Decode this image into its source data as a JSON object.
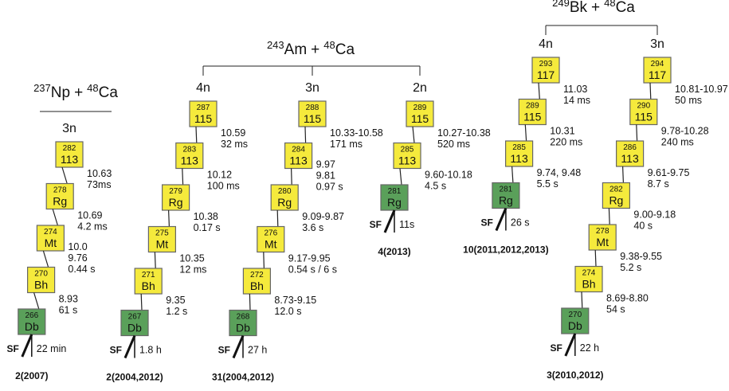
{
  "reactions": [
    {
      "target_mass": "237",
      "target": "Np",
      "joiner": "+",
      "projectile_mass": "48",
      "projectile": "Ca",
      "chains": [
        {
          "channel": "3n",
          "nodes": [
            {
              "mass": "282",
              "symbol": "113",
              "color": "#f5ea3c"
            },
            {
              "mass": "278",
              "symbol": "Rg",
              "color": "#f5ea3c"
            },
            {
              "mass": "274",
              "symbol": "Mt",
              "color": "#f5ea3c"
            },
            {
              "mass": "270",
              "symbol": "Bh",
              "color": "#f5ea3c"
            },
            {
              "mass": "266",
              "symbol": "Db",
              "color": "#5aa05a"
            }
          ],
          "decays": [
            [
              "10.63",
              "73ms"
            ],
            [
              "10.69",
              "4.2 ms"
            ],
            [
              "10.0",
              "9.76",
              "0.44 s"
            ],
            [
              "8.93",
              "61 s"
            ]
          ],
          "sf": "SF",
          "sf_time": "22 min",
          "count": "2(2007)"
        }
      ]
    },
    {
      "target_mass": "243",
      "target": "Am",
      "joiner": "+",
      "projectile_mass": "48",
      "projectile": "Ca",
      "chains": [
        {
          "channel": "4n",
          "nodes": [
            {
              "mass": "287",
              "symbol": "115",
              "color": "#f5ea3c"
            },
            {
              "mass": "283",
              "symbol": "113",
              "color": "#f5ea3c"
            },
            {
              "mass": "279",
              "symbol": "Rg",
              "color": "#f5ea3c"
            },
            {
              "mass": "275",
              "symbol": "Mt",
              "color": "#f5ea3c"
            },
            {
              "mass": "271",
              "symbol": "Bh",
              "color": "#f5ea3c"
            },
            {
              "mass": "267",
              "symbol": "Db",
              "color": "#5aa05a"
            }
          ],
          "decays": [
            [
              "10.59",
              "32 ms"
            ],
            [
              "10.12",
              "100 ms"
            ],
            [
              "10.38",
              "0.17 s"
            ],
            [
              "10.35",
              "12 ms"
            ],
            [
              "9.35",
              "1.2 s"
            ]
          ],
          "sf": "SF",
          "sf_time": "1.8 h",
          "count": "2(2004,2012)"
        },
        {
          "channel": "3n",
          "nodes": [
            {
              "mass": "288",
              "symbol": "115",
              "color": "#f5ea3c"
            },
            {
              "mass": "284",
              "symbol": "113",
              "color": "#f5ea3c"
            },
            {
              "mass": "280",
              "symbol": "Rg",
              "color": "#f5ea3c"
            },
            {
              "mass": "276",
              "symbol": "Mt",
              "color": "#f5ea3c"
            },
            {
              "mass": "272",
              "symbol": "Bh",
              "color": "#f5ea3c"
            },
            {
              "mass": "268",
              "symbol": "Db",
              "color": "#5aa05a"
            }
          ],
          "decays": [
            [
              "10.33-10.58",
              "171 ms"
            ],
            [
              "9.97",
              "9.81",
              "0.97 s"
            ],
            [
              "9.09-9.87",
              "3.6 s"
            ],
            [
              "9.17-9.95",
              "0.54 s / 6 s"
            ],
            [
              "8.73-9.15",
              "12.0 s"
            ]
          ],
          "sf": "SF",
          "sf_time": "27 h",
          "count": "31(2004,2012)"
        },
        {
          "channel": "2n",
          "nodes": [
            {
              "mass": "289",
              "symbol": "115",
              "color": "#f5ea3c"
            },
            {
              "mass": "285",
              "symbol": "113",
              "color": "#f5ea3c"
            },
            {
              "mass": "281",
              "symbol": "Rg",
              "color": "#5aa05a"
            }
          ],
          "decays": [
            [
              "10.27-10.38",
              "520 ms"
            ],
            [
              "9.60-10.18",
              "4.5 s"
            ]
          ],
          "sf": "SF",
          "sf_time": "11s",
          "count": "4(2013)"
        }
      ]
    },
    {
      "target_mass": "249",
      "target": "Bk",
      "joiner": "+",
      "projectile_mass": "48",
      "projectile": "Ca",
      "chains": [
        {
          "channel": "4n",
          "nodes": [
            {
              "mass": "293",
              "symbol": "117",
              "color": "#f5ea3c"
            },
            {
              "mass": "289",
              "symbol": "115",
              "color": "#f5ea3c"
            },
            {
              "mass": "285",
              "symbol": "113",
              "color": "#f5ea3c"
            },
            {
              "mass": "281",
              "symbol": "Rg",
              "color": "#5aa05a"
            }
          ],
          "decays": [
            [
              "11.03",
              "14 ms"
            ],
            [
              "10.31",
              "220 ms"
            ],
            [
              "9.74, 9.48",
              "5.5 s"
            ]
          ],
          "sf": "SF",
          "sf_time": "26 s",
          "count": "10(2011,2012,2013)"
        },
        {
          "channel": "3n",
          "nodes": [
            {
              "mass": "294",
              "symbol": "117",
              "color": "#f5ea3c"
            },
            {
              "mass": "290",
              "symbol": "115",
              "color": "#f5ea3c"
            },
            {
              "mass": "286",
              "symbol": "113",
              "color": "#f5ea3c"
            },
            {
              "mass": "282",
              "symbol": "Rg",
              "color": "#f5ea3c"
            },
            {
              "mass": "278",
              "symbol": "Mt",
              "color": "#f5ea3c"
            },
            {
              "mass": "274",
              "symbol": "Bh",
              "color": "#f5ea3c"
            },
            {
              "mass": "270",
              "symbol": "Db",
              "color": "#5aa05a"
            }
          ],
          "decays": [
            [
              "10.81-10.97",
              "50 ms"
            ],
            [
              "9.78-10.28",
              "240 ms"
            ],
            [
              "9.61-9.75",
              "8.7 s"
            ],
            [
              "9.00-9.18",
              "40 s"
            ],
            [
              "9.38-9.55",
              "5.2 s"
            ],
            [
              "8.69-8.80",
              "54 s"
            ]
          ],
          "sf": "SF",
          "sf_time": "22 h",
          "count": "3(2010,2012)"
        }
      ]
    }
  ]
}
